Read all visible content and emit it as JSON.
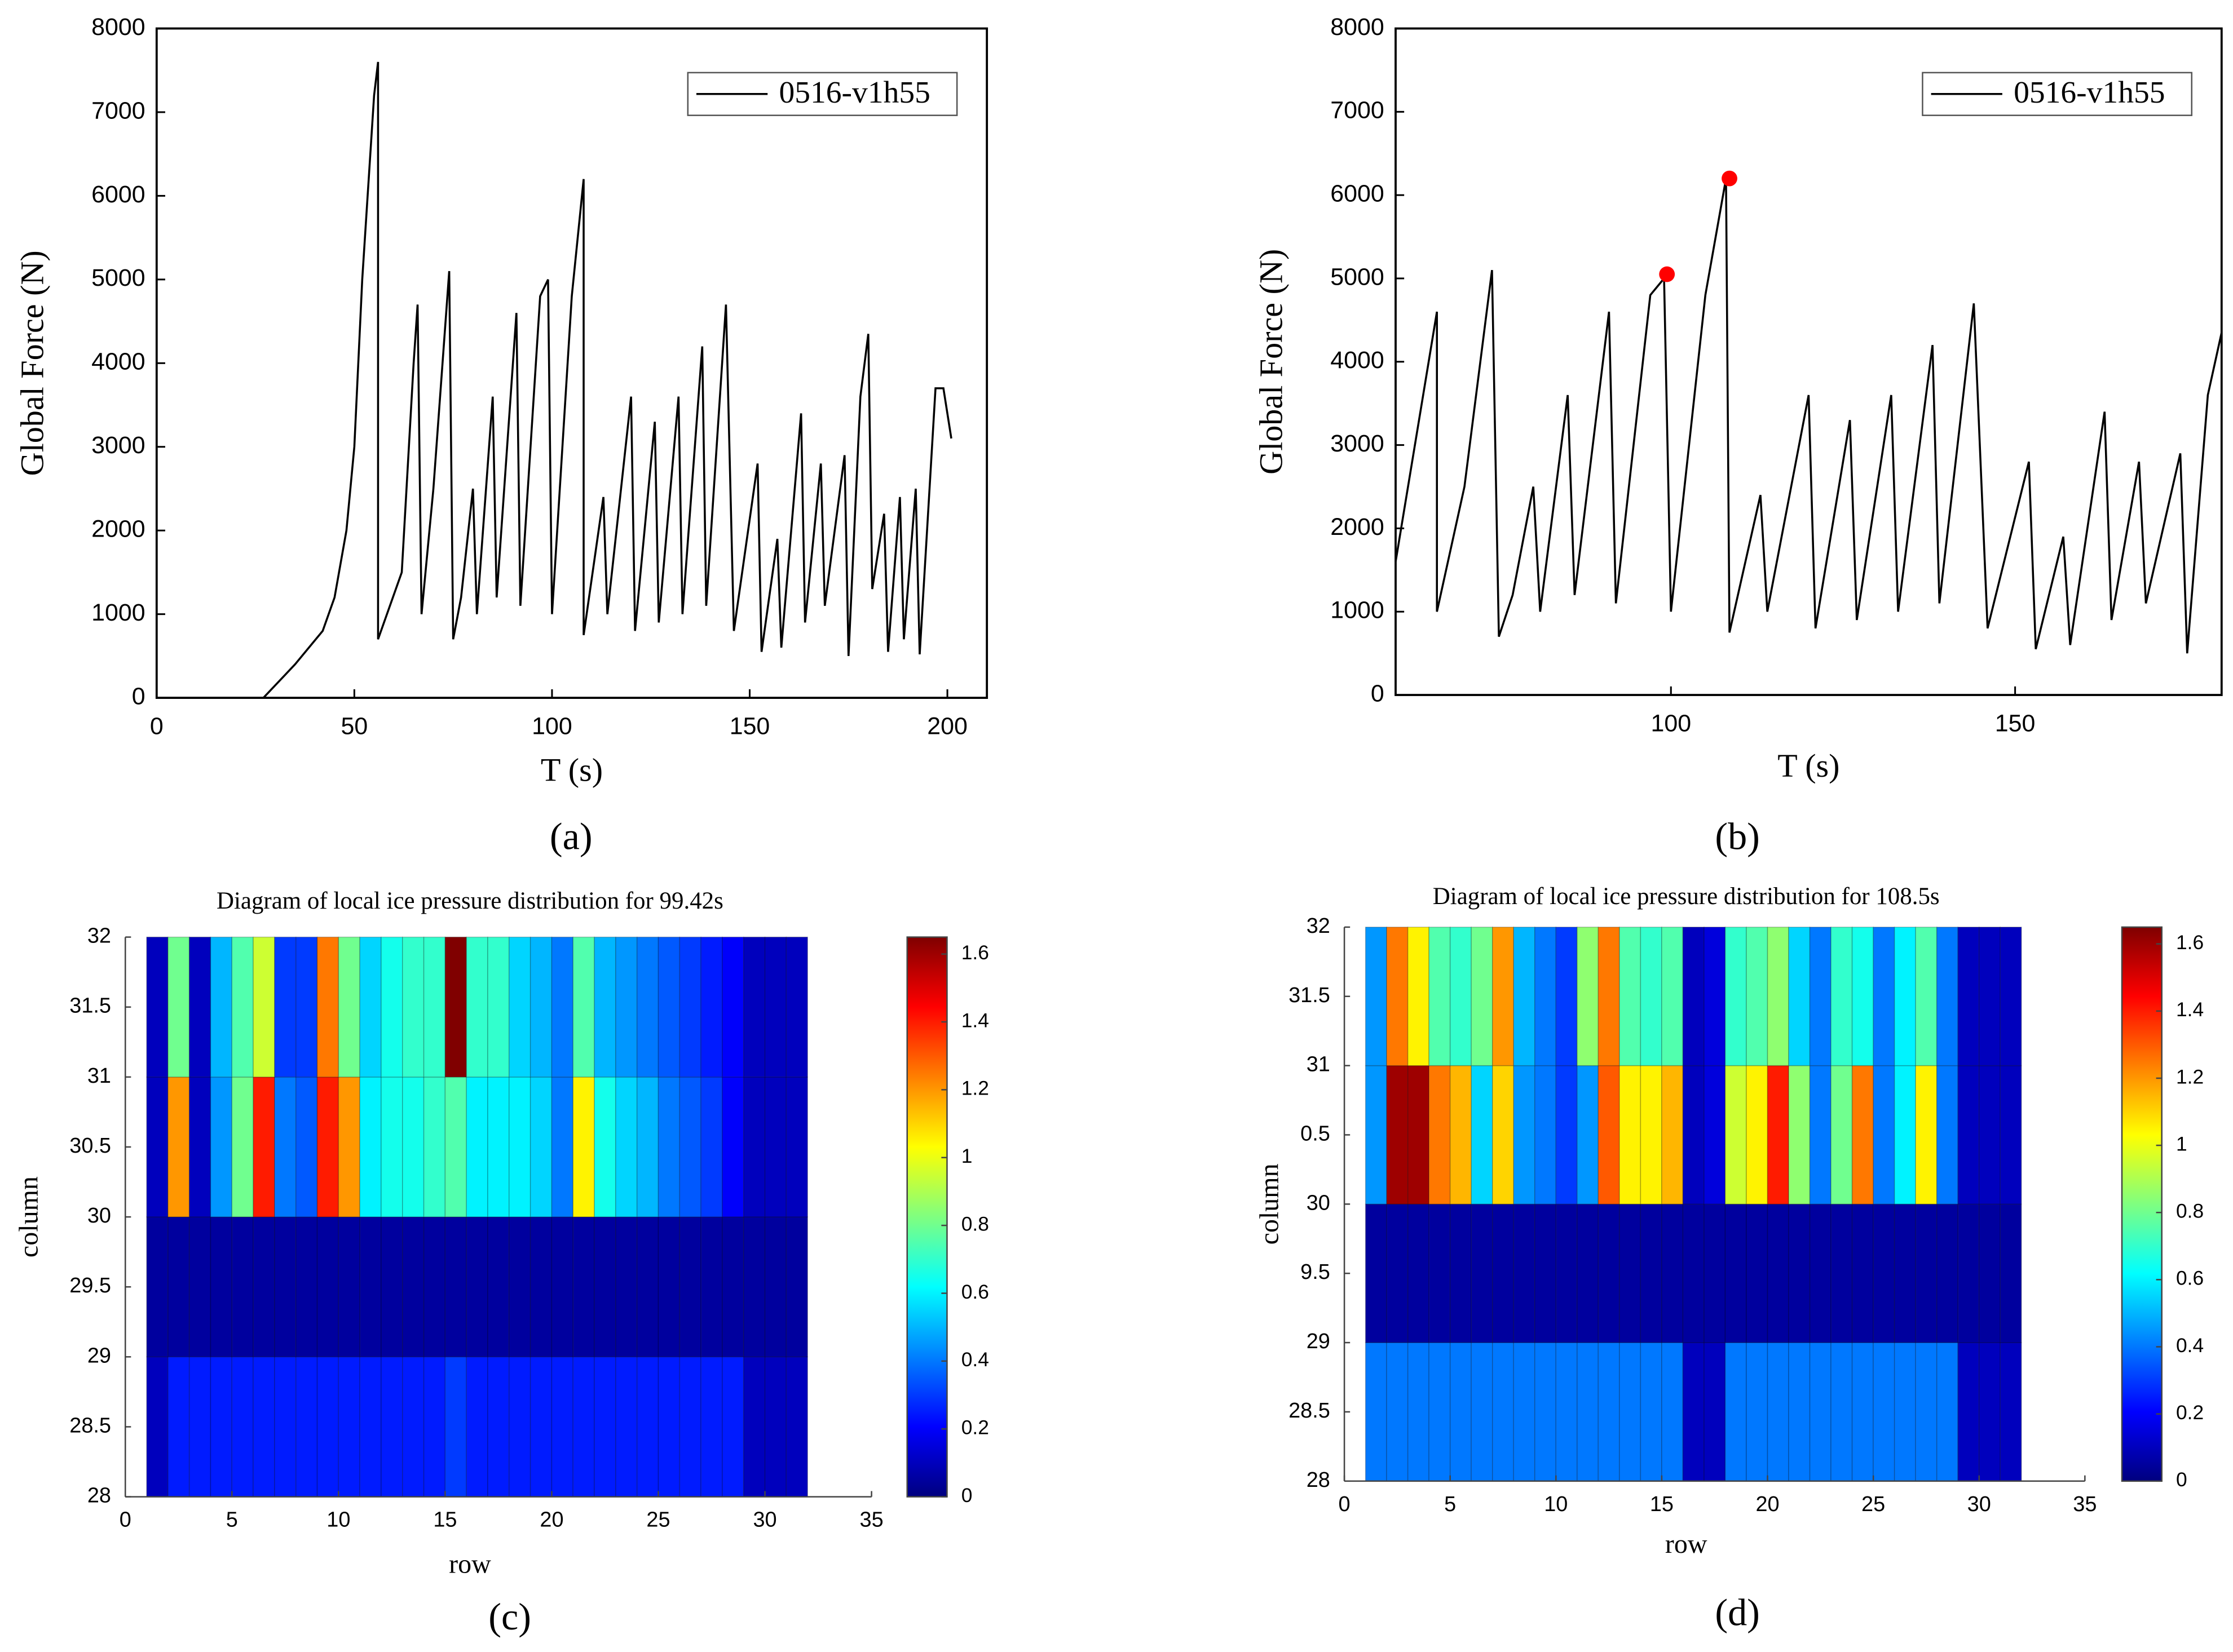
{
  "chart_data": [
    {
      "type": "line",
      "xlabel": "T (s)",
      "ylabel": "Global Force (N)",
      "panel_label": "(a)",
      "xlim": [
        0,
        210
      ],
      "ylim": [
        0,
        8000
      ],
      "xticks": [
        0,
        50,
        100,
        150,
        200
      ],
      "yticks": [
        0,
        1000,
        2000,
        3000,
        4000,
        5000,
        6000,
        7000,
        8000
      ],
      "legend": "upper right",
      "x": [
        0,
        27,
        30,
        35,
        42,
        45,
        48,
        50,
        52,
        55,
        56,
        56,
        62,
        65,
        66,
        67,
        70,
        74,
        75,
        77,
        80,
        81,
        85,
        86,
        91,
        92,
        97,
        99,
        100,
        105,
        108,
        108,
        113,
        114,
        120,
        121,
        126,
        127,
        132,
        133,
        138,
        139,
        144,
        146,
        152,
        153,
        157,
        158,
        163,
        164,
        168,
        169,
        174,
        175,
        178,
        180,
        181,
        184,
        185,
        188,
        189,
        192,
        193,
        197,
        199,
        201
      ],
      "series": [
        {
          "name": "0516-v1h55",
          "color": "#000000",
          "values": [
            0,
            0,
            150,
            400,
            800,
            1200,
            2000,
            3000,
            5000,
            7200,
            7600,
            700,
            1500,
            4000,
            4700,
            1000,
            2500,
            5100,
            700,
            1200,
            2500,
            1000,
            3600,
            1200,
            4600,
            1100,
            4800,
            5000,
            1000,
            4800,
            6200,
            750,
            2400,
            1000,
            3600,
            800,
            3300,
            900,
            3600,
            1000,
            4200,
            1100,
            4700,
            800,
            2800,
            550,
            1900,
            600,
            3400,
            900,
            2800,
            1100,
            2900,
            500,
            3600,
            4350,
            1300,
            2200,
            550,
            2400,
            700,
            2500,
            520,
            3700,
            3700,
            3100
          ]
        }
      ]
    },
    {
      "type": "line",
      "xlabel": "T (s)",
      "ylabel": "Global Force (N)",
      "panel_label": "(b)",
      "xlim": [
        60,
        180
      ],
      "ylim": [
        0,
        8000
      ],
      "xticks": [
        100,
        150
      ],
      "yticks": [
        0,
        1000,
        2000,
        3000,
        4000,
        5000,
        6000,
        7000,
        8000
      ],
      "legend": "upper right",
      "x": [
        60,
        66,
        66,
        70,
        74,
        75,
        77,
        80,
        81,
        85,
        86,
        91,
        92,
        97,
        99,
        100,
        105,
        108,
        108.5,
        113,
        114,
        120,
        121,
        126,
        127,
        132,
        133,
        138,
        139,
        144,
        146,
        152,
        153,
        157,
        158,
        163,
        164,
        168,
        169,
        174,
        175,
        178,
        180
      ],
      "series": [
        {
          "name": "0516-v1h55",
          "color": "#000000",
          "values": [
            1600,
            4600,
            1000,
            2500,
            5100,
            700,
            1200,
            2500,
            1000,
            3600,
            1200,
            4600,
            1100,
            4800,
            5000,
            1000,
            4800,
            6200,
            750,
            2400,
            1000,
            3600,
            800,
            3300,
            900,
            3600,
            1000,
            4200,
            1100,
            4700,
            800,
            2800,
            550,
            1900,
            600,
            3400,
            900,
            2800,
            1100,
            2900,
            500,
            3600,
            4350
          ]
        }
      ],
      "points": {
        "color": "#ff0000",
        "x": [
          99.42,
          108.5
        ],
        "values": [
          5050,
          6200
        ]
      }
    },
    {
      "type": "heatmap",
      "title": "Diagram of local ice pressure distribution for 99.42s",
      "xlabel": "row",
      "ylabel": "column",
      "panel_label": "(c)",
      "colormap": "jet",
      "xlim": [
        0,
        35
      ],
      "ylim": [
        28,
        32
      ],
      "xticks": [
        0,
        5,
        10,
        15,
        20,
        25,
        30,
        35
      ],
      "yticks": [
        28,
        28.5,
        29,
        29.5,
        30,
        30.5,
        31,
        31.5,
        32
      ],
      "xedges": [
        1,
        2,
        3,
        4,
        5,
        6,
        7,
        8,
        9,
        10,
        11,
        12,
        13,
        14,
        15,
        16,
        17,
        18,
        19,
        20,
        21,
        22,
        23,
        24,
        25,
        26,
        27,
        28,
        29,
        30,
        31,
        32
      ],
      "yedges": [
        28,
        29,
        30,
        31,
        32
      ],
      "z": [
        [
          0.1,
          0.25,
          0.25,
          0.25,
          0.25,
          0.25,
          0.25,
          0.25,
          0.25,
          0.25,
          0.25,
          0.25,
          0.25,
          0.25,
          0.3,
          0.25,
          0.25,
          0.25,
          0.25,
          0.25,
          0.25,
          0.25,
          0.25,
          0.25,
          0.25,
          0.25,
          0.25,
          0.25,
          0.1,
          0.1,
          0.1
        ],
        [
          0.05,
          0.05,
          0.05,
          0.05,
          0.05,
          0.05,
          0.05,
          0.05,
          0.05,
          0.05,
          0.05,
          0.05,
          0.05,
          0.05,
          0.05,
          0.05,
          0.05,
          0.05,
          0.05,
          0.05,
          0.05,
          0.05,
          0.05,
          0.05,
          0.05,
          0.05,
          0.05,
          0.05,
          0.05,
          0.05,
          0.05
        ],
        [
          0.1,
          1.2,
          0.1,
          0.45,
          0.8,
          1.4,
          0.4,
          0.35,
          1.4,
          1.2,
          0.6,
          0.65,
          0.65,
          0.7,
          0.75,
          0.6,
          0.6,
          0.6,
          0.55,
          0.4,
          1.05,
          0.65,
          0.55,
          0.5,
          0.4,
          0.35,
          0.3,
          0.2,
          0.1,
          0.1,
          0.1
        ],
        [
          0.1,
          0.8,
          0.1,
          0.5,
          0.75,
          0.95,
          0.3,
          0.3,
          1.25,
          0.8,
          0.55,
          0.65,
          0.7,
          0.7,
          1.65,
          0.7,
          0.7,
          0.55,
          0.5,
          0.4,
          0.75,
          0.5,
          0.45,
          0.4,
          0.35,
          0.3,
          0.25,
          0.2,
          0.1,
          0.1,
          0.1
        ]
      ],
      "colorbar": {
        "lim": [
          0,
          1.65
        ],
        "ticks": [
          0,
          0.2,
          0.4,
          0.6,
          0.8,
          1,
          1.2,
          1.4,
          1.6
        ]
      }
    },
    {
      "type": "heatmap",
      "title": "Diagram of local ice pressure distribution for 108.5s",
      "xlabel": "row",
      "ylabel": "column",
      "panel_label": "(d)",
      "colormap": "jet",
      "xlim": [
        0,
        35
      ],
      "ylim": [
        28,
        32
      ],
      "xticks": [
        0,
        5,
        10,
        15,
        20,
        25,
        30,
        35
      ],
      "yticks": [
        28,
        28.5,
        29,
        {
          "value": 29.5,
          "label": "9.5"
        },
        30,
        {
          "value": 30.5,
          "label": "0.5"
        },
        31,
        31.5,
        32
      ],
      "xedges": [
        1,
        2,
        3,
        4,
        5,
        6,
        7,
        8,
        9,
        10,
        11,
        12,
        13,
        14,
        15,
        16,
        17,
        18,
        19,
        20,
        21,
        22,
        23,
        24,
        25,
        26,
        27,
        28,
        29,
        30,
        31,
        32
      ],
      "yedges": [
        28,
        29,
        30,
        31,
        32
      ],
      "z": [
        [
          0.4,
          0.4,
          0.4,
          0.4,
          0.4,
          0.4,
          0.4,
          0.4,
          0.4,
          0.4,
          0.4,
          0.4,
          0.4,
          0.4,
          0.4,
          0.1,
          0.1,
          0.4,
          0.4,
          0.4,
          0.4,
          0.4,
          0.4,
          0.4,
          0.4,
          0.4,
          0.4,
          0.4,
          0.1,
          0.1,
          0.1
        ],
        [
          0.05,
          0.05,
          0.05,
          0.05,
          0.05,
          0.05,
          0.05,
          0.05,
          0.05,
          0.05,
          0.05,
          0.05,
          0.05,
          0.05,
          0.05,
          0.05,
          0.05,
          0.05,
          0.05,
          0.05,
          0.05,
          0.05,
          0.05,
          0.05,
          0.05,
          0.05,
          0.05,
          0.05,
          0.05,
          0.05,
          0.05
        ],
        [
          0.45,
          1.6,
          1.6,
          1.25,
          1.15,
          0.55,
          1.1,
          0.45,
          0.4,
          0.3,
          0.45,
          1.3,
          1.05,
          1.05,
          1.15,
          0.1,
          0.15,
          0.95,
          1.05,
          1.4,
          0.85,
          0.4,
          0.8,
          1.25,
          0.4,
          0.6,
          1.05,
          0.4,
          0.1,
          0.1,
          0.1
        ],
        [
          0.45,
          1.25,
          1.05,
          0.75,
          0.7,
          0.8,
          1.2,
          0.5,
          0.4,
          0.3,
          0.85,
          1.25,
          0.75,
          0.7,
          0.75,
          0.1,
          0.15,
          0.7,
          0.75,
          0.85,
          0.55,
          0.4,
          0.7,
          0.65,
          0.4,
          0.6,
          0.75,
          0.4,
          0.1,
          0.1,
          0.1
        ]
      ],
      "colorbar": {
        "lim": [
          0,
          1.65
        ],
        "ticks": [
          0,
          0.2,
          0.4,
          0.6,
          0.8,
          1,
          1.2,
          1.4,
          1.6
        ]
      }
    }
  ]
}
